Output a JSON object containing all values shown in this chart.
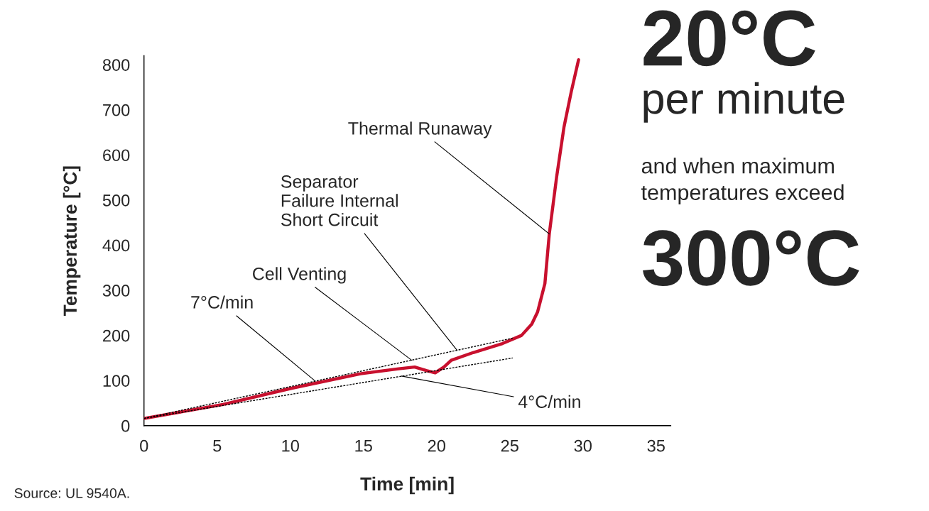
{
  "chart_data": {
    "type": "line",
    "xlabel": "Time [min]",
    "ylabel": "Temperature [°C]",
    "xlim": [
      0,
      36
    ],
    "ylim": [
      0,
      820
    ],
    "xticks": [
      0,
      5,
      10,
      15,
      20,
      25,
      30,
      35
    ],
    "yticks": [
      0,
      100,
      200,
      300,
      400,
      500,
      600,
      700,
      800
    ],
    "grid": false,
    "legend": false,
    "marker": "none",
    "series": [
      {
        "color": "#c8102e",
        "x": [
          0,
          5.4,
          10.1,
          14.8,
          17.4,
          18.5,
          19.3,
          19.9,
          20.5,
          21.0,
          22.5,
          24.5,
          25.8,
          26.5,
          26.9,
          27.4,
          27.7,
          28.2,
          28.7,
          29.2,
          29.7
        ],
        "values": [
          16,
          47,
          83,
          115,
          126,
          130,
          122,
          117,
          130,
          145,
          162,
          182,
          200,
          225,
          252,
          315,
          425,
          551,
          661,
          740,
          811
        ]
      },
      {
        "color": "#000000",
        "line_style": "dashed",
        "x": [
          0,
          25.2
        ],
        "values": [
          16,
          194
        ]
      },
      {
        "color": "#000000",
        "line_style": "dashed",
        "x": [
          0,
          25.2
        ],
        "values": [
          16,
          150
        ]
      }
    ],
    "annotations": [
      {
        "text": "Thermal Runaway",
        "x": 27.7,
        "y": 425
      },
      {
        "text": "Separator\nFailure Internal\nShort Circuit",
        "x": 21.4,
        "y": 167
      },
      {
        "text": "Cell Venting",
        "x": 18.3,
        "y": 145
      },
      {
        "text": "7°C/min",
        "x": 11.7,
        "y": 99
      },
      {
        "text": "4°C/min",
        "x": 17.6,
        "y": 110
      },
      "20°C",
      "per minute",
      "and when maximum\ntemperatures exceed",
      "300°C",
      "Source: UL 9540A."
    ]
  }
}
